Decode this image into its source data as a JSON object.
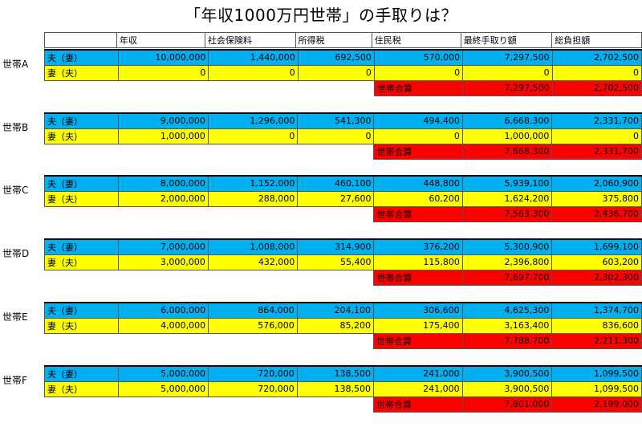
{
  "title": "「年収1000万円世帯」の手取りは？",
  "headers": [
    "",
    "年収",
    "社会保険料",
    "所得税",
    "住民税",
    "最終手取り額",
    "総負担額"
  ],
  "total_label": "世帯合算",
  "households": [
    {
      "name": "世帯A",
      "rows": [
        {
          "label": "夫（妻）",
          "values": [
            "10,000,000",
            "1,440,000",
            "692,500",
            "570,000",
            "7,297,500",
            "2,702,500"
          ]
        },
        {
          "label": "妻（夫）",
          "values": [
            "0",
            "0",
            "0",
            "0",
            "0",
            "0"
          ]
        }
      ],
      "total": [
        "7,297,500",
        "2,702,500"
      ]
    },
    {
      "name": "世帯B",
      "rows": [
        {
          "label": "夫（妻）",
          "values": [
            "9,000,000",
            "1,296,000",
            "541,300",
            "494,400",
            "6,668,300",
            "2,331,700"
          ]
        },
        {
          "label": "妻（夫）",
          "values": [
            "1,000,000",
            "0",
            "0",
            "0",
            "1,000,000",
            "0"
          ]
        }
      ],
      "total": [
        "7,668,300",
        "2,331,700"
      ]
    },
    {
      "name": "世帯C",
      "rows": [
        {
          "label": "夫（妻）",
          "values": [
            "8,000,000",
            "1,152,000",
            "460,100",
            "448,800",
            "5,939,100",
            "2,060,900"
          ]
        },
        {
          "label": "妻（夫）",
          "values": [
            "2,000,000",
            "288,000",
            "27,600",
            "60,200",
            "1,624,200",
            "375,800"
          ]
        }
      ],
      "total": [
        "7,563,300",
        "2,436,700"
      ]
    },
    {
      "name": "世帯D",
      "rows": [
        {
          "label": "夫（妻）",
          "values": [
            "7,000,000",
            "1,008,000",
            "314,900",
            "376,200",
            "5,300,900",
            "1,699,100"
          ]
        },
        {
          "label": "妻（夫）",
          "values": [
            "3,000,000",
            "432,000",
            "55,400",
            "115,800",
            "2,396,800",
            "603,200"
          ]
        }
      ],
      "total": [
        "7,697,700",
        "2,302,300"
      ]
    },
    {
      "name": "世帯E",
      "rows": [
        {
          "label": "夫（妻）",
          "values": [
            "6,000,000",
            "864,000",
            "204,100",
            "306,600",
            "4,625,300",
            "1,374,700"
          ]
        },
        {
          "label": "妻（夫）",
          "values": [
            "4,000,000",
            "576,000",
            "85,200",
            "175,400",
            "3,163,400",
            "836,600"
          ]
        }
      ],
      "total": [
        "7,788,700",
        "2,211,300"
      ]
    },
    {
      "name": "世帯F",
      "rows": [
        {
          "label": "夫（妻）",
          "values": [
            "5,000,000",
            "720,000",
            "138,500",
            "241,000",
            "3,900,500",
            "1,099,500"
          ]
        },
        {
          "label": "妻（夫）",
          "values": [
            "5,000,000",
            "720,000",
            "138,500",
            "241,000",
            "3,900,500",
            "1,099,500"
          ]
        }
      ],
      "total": [
        "7,801,000",
        "2,199,000"
      ]
    }
  ]
}
